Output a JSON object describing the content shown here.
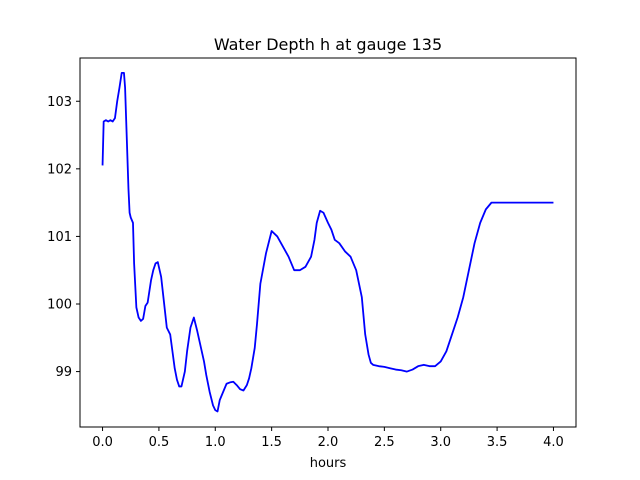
{
  "chart_data": {
    "type": "line",
    "title": "Water Depth h at gauge 135",
    "xlabel": "hours",
    "ylabel": "",
    "xlim": [
      -0.2,
      4.2
    ],
    "ylim": [
      98.18,
      103.64
    ],
    "xticks": [
      0.0,
      0.5,
      1.0,
      1.5,
      2.0,
      2.5,
      3.0,
      3.5,
      4.0
    ],
    "xtick_labels": [
      "0.0",
      "0.5",
      "1.0",
      "1.5",
      "2.0",
      "2.5",
      "3.0",
      "3.5",
      "4.0"
    ],
    "yticks": [
      99,
      100,
      101,
      102,
      103
    ],
    "ytick_labels": [
      "99",
      "100",
      "101",
      "102",
      "103"
    ],
    "grid": false,
    "series": [
      {
        "color": "#0000ff",
        "x": [
          0.0,
          0.01,
          0.03,
          0.05,
          0.07,
          0.09,
          0.11,
          0.13,
          0.15,
          0.17,
          0.19,
          0.2,
          0.21,
          0.22,
          0.23,
          0.24,
          0.25,
          0.27,
          0.28,
          0.3,
          0.32,
          0.34,
          0.36,
          0.38,
          0.4,
          0.43,
          0.45,
          0.47,
          0.49,
          0.52,
          0.55,
          0.57,
          0.6,
          0.62,
          0.64,
          0.66,
          0.68,
          0.7,
          0.73,
          0.75,
          0.78,
          0.81,
          0.84,
          0.86,
          0.88,
          0.9,
          0.92,
          0.95,
          0.98,
          1.0,
          1.02,
          1.04,
          1.07,
          1.1,
          1.13,
          1.16,
          1.19,
          1.22,
          1.25,
          1.28,
          1.3,
          1.32,
          1.35,
          1.37,
          1.4,
          1.45,
          1.5,
          1.55,
          1.6,
          1.65,
          1.7,
          1.75,
          1.8,
          1.85,
          1.88,
          1.9,
          1.93,
          1.96,
          2.0,
          2.03,
          2.06,
          2.1,
          2.15,
          2.2,
          2.25,
          2.3,
          2.33,
          2.36,
          2.38,
          2.4,
          2.45,
          2.5,
          2.55,
          2.6,
          2.65,
          2.7,
          2.75,
          2.8,
          2.85,
          2.9,
          2.95,
          3.0,
          3.05,
          3.1,
          3.15,
          3.2,
          3.25,
          3.3,
          3.35,
          3.4,
          3.45,
          3.5,
          3.55,
          3.6,
          3.65,
          3.7,
          3.75,
          3.8,
          3.85,
          3.9,
          3.95,
          4.0
        ],
        "y": [
          102.05,
          102.7,
          102.72,
          102.7,
          102.72,
          102.7,
          102.75,
          103.0,
          103.2,
          103.42,
          103.42,
          103.2,
          102.7,
          102.2,
          101.7,
          101.35,
          101.28,
          101.2,
          100.6,
          99.95,
          99.8,
          99.75,
          99.78,
          99.97,
          100.02,
          100.35,
          100.5,
          100.6,
          100.62,
          100.4,
          99.95,
          99.65,
          99.55,
          99.3,
          99.05,
          98.88,
          98.78,
          98.78,
          99.0,
          99.3,
          99.65,
          99.8,
          99.6,
          99.45,
          99.3,
          99.15,
          98.95,
          98.7,
          98.5,
          98.43,
          98.41,
          98.58,
          98.7,
          98.82,
          98.84,
          98.85,
          98.8,
          98.74,
          98.72,
          98.8,
          98.9,
          99.05,
          99.35,
          99.7,
          100.3,
          100.75,
          101.08,
          101.0,
          100.85,
          100.7,
          100.5,
          100.5,
          100.55,
          100.7,
          100.95,
          101.2,
          101.38,
          101.35,
          101.2,
          101.1,
          100.95,
          100.9,
          100.78,
          100.7,
          100.5,
          100.1,
          99.55,
          99.25,
          99.13,
          99.1,
          99.08,
          99.07,
          99.05,
          99.03,
          99.02,
          99.0,
          99.03,
          99.08,
          99.1,
          99.08,
          99.08,
          99.15,
          99.3,
          99.55,
          99.8,
          100.1,
          100.5,
          100.9,
          101.2,
          101.4,
          101.5,
          101.5,
          101.5,
          101.5,
          101.5,
          101.5,
          101.5,
          101.5,
          101.5,
          101.5,
          101.5,
          101.5
        ]
      }
    ]
  }
}
